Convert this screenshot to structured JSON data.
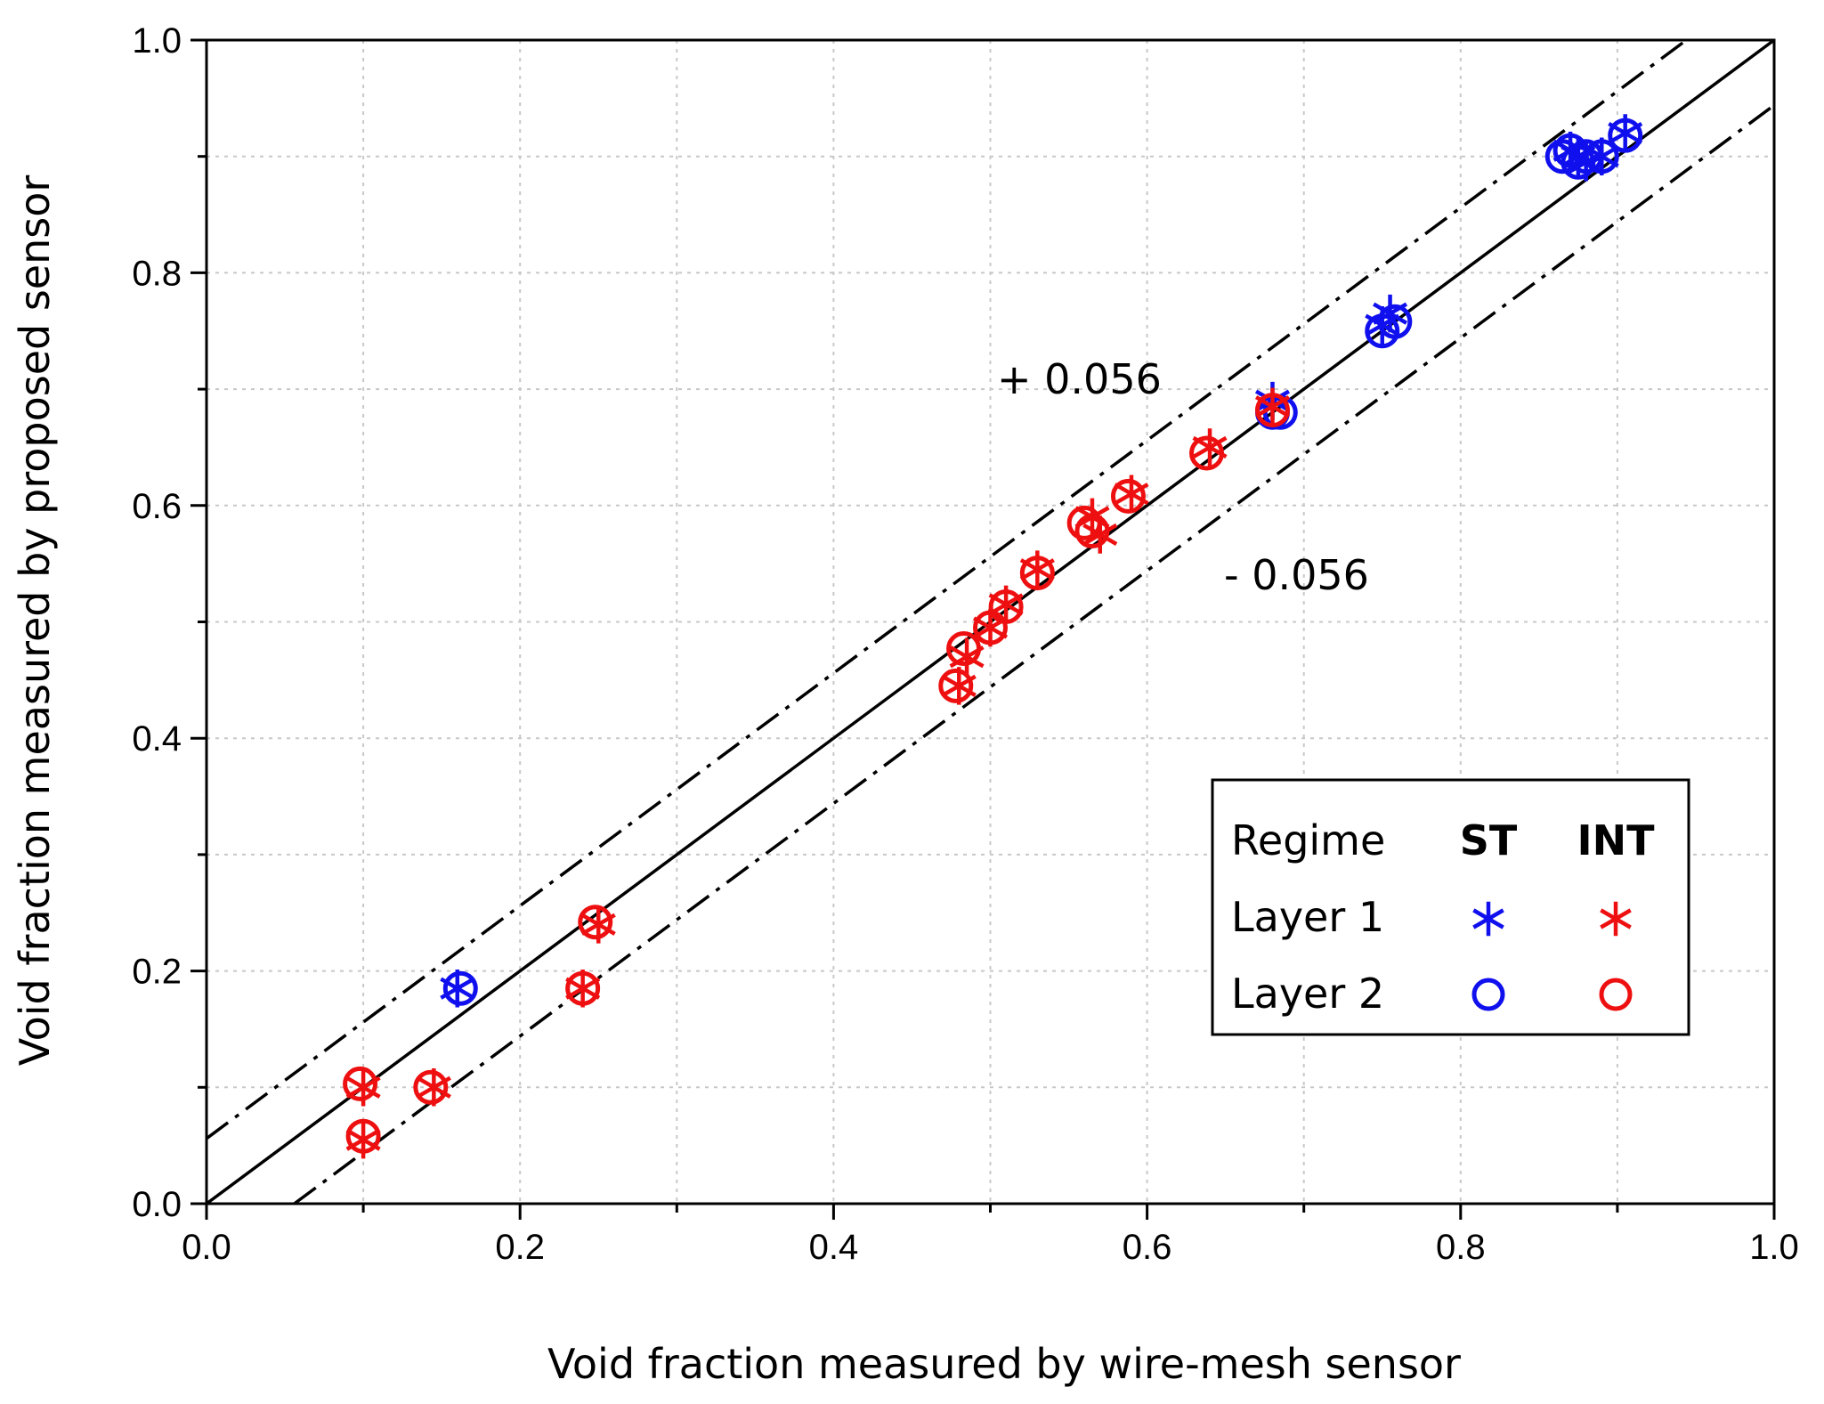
{
  "chart_data": {
    "type": "scatter",
    "xlabel": "Void fraction measured by wire-mesh sensor",
    "ylabel": "Void fraction measured by proposed sensor",
    "xlim": [
      0.0,
      1.0
    ],
    "ylim": [
      0.0,
      1.0
    ],
    "x_ticks": [
      "0.0",
      "0.2",
      "0.4",
      "0.6",
      "0.8",
      "1.0"
    ],
    "y_ticks": [
      "0.0",
      "0.2",
      "0.4",
      "0.6",
      "0.8",
      "1.0"
    ],
    "grid": true,
    "reference_lines": [
      {
        "label": "",
        "offset": 0.0,
        "style": "solid"
      },
      {
        "label": "+ 0.056",
        "offset": 0.056,
        "style": "dash-dot"
      },
      {
        "label": "- 0.056",
        "offset": -0.056,
        "style": "dash-dot"
      }
    ],
    "colors": {
      "ST": "#1010ee",
      "INT": "#ee1010"
    },
    "legend": {
      "placement": "bottom-right",
      "header": "Regime",
      "columns": [
        "ST",
        "INT"
      ],
      "rows": [
        "Layer 1",
        "Layer 2"
      ]
    },
    "series": [
      {
        "name": "ST Layer 1",
        "regime": "ST",
        "marker": "asterisk",
        "x": [
          0.16,
          0.68,
          0.75,
          0.755,
          0.87,
          0.875,
          0.88,
          0.89,
          0.905
        ],
        "y": [
          0.185,
          0.69,
          0.755,
          0.765,
          0.905,
          0.9,
          0.895,
          0.9,
          0.92
        ]
      },
      {
        "name": "ST Layer 2",
        "regime": "ST",
        "marker": "circle",
        "x": [
          0.162,
          0.68,
          0.685,
          0.75,
          0.758,
          0.865,
          0.87,
          0.875,
          0.88,
          0.89,
          0.905
        ],
        "y": [
          0.185,
          0.68,
          0.68,
          0.75,
          0.758,
          0.9,
          0.905,
          0.895,
          0.9,
          0.9,
          0.918
        ]
      },
      {
        "name": "INT Layer 1",
        "regime": "INT",
        "marker": "asterisk",
        "x": [
          0.1,
          0.1,
          0.145,
          0.24,
          0.25,
          0.48,
          0.485,
          0.5,
          0.51,
          0.53,
          0.565,
          0.57,
          0.59,
          0.64,
          0.68
        ],
        "y": [
          0.1,
          0.055,
          0.1,
          0.185,
          0.24,
          0.445,
          0.47,
          0.495,
          0.515,
          0.545,
          0.59,
          0.575,
          0.61,
          0.65,
          0.685
        ]
      },
      {
        "name": "INT Layer 2",
        "regime": "INT",
        "marker": "circle",
        "x": [
          0.098,
          0.1,
          0.143,
          0.24,
          0.248,
          0.478,
          0.483,
          0.5,
          0.51,
          0.53,
          0.56,
          0.565,
          0.588,
          0.638,
          0.68
        ],
        "y": [
          0.103,
          0.058,
          0.1,
          0.185,
          0.242,
          0.445,
          0.477,
          0.495,
          0.513,
          0.542,
          0.585,
          0.578,
          0.608,
          0.645,
          0.682
        ]
      }
    ]
  }
}
